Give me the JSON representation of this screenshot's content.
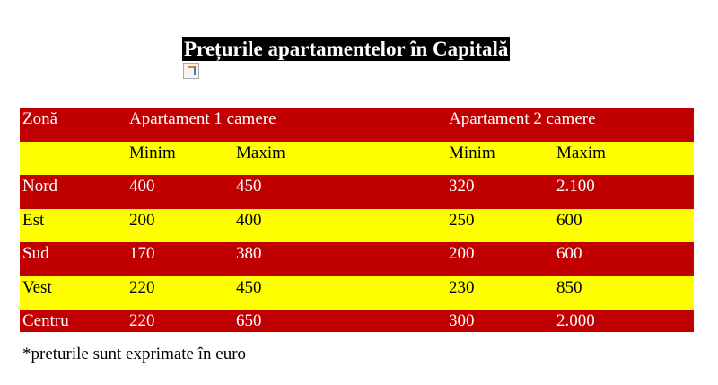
{
  "title": "Prețurile apartamentelor în Capitală",
  "table": {
    "header": [
      "Zonă",
      "Apartament 1 camere",
      "Apartament 2 camere"
    ],
    "subheader": [
      "Minim",
      "Maxim",
      "Minim",
      "Maxim"
    ],
    "rows": [
      [
        "Nord",
        "400",
        "450",
        "320",
        "2.100"
      ],
      [
        "Est",
        "200",
        "400",
        "250",
        "600"
      ],
      [
        "Sud",
        "170",
        "380",
        "200",
        "600"
      ],
      [
        "Vest",
        "220",
        "450",
        "230",
        "850"
      ],
      [
        "Centru",
        "220",
        "650",
        "300",
        "2.000"
      ]
    ]
  },
  "footnote": "*preturile sunt exprimate în euro"
}
